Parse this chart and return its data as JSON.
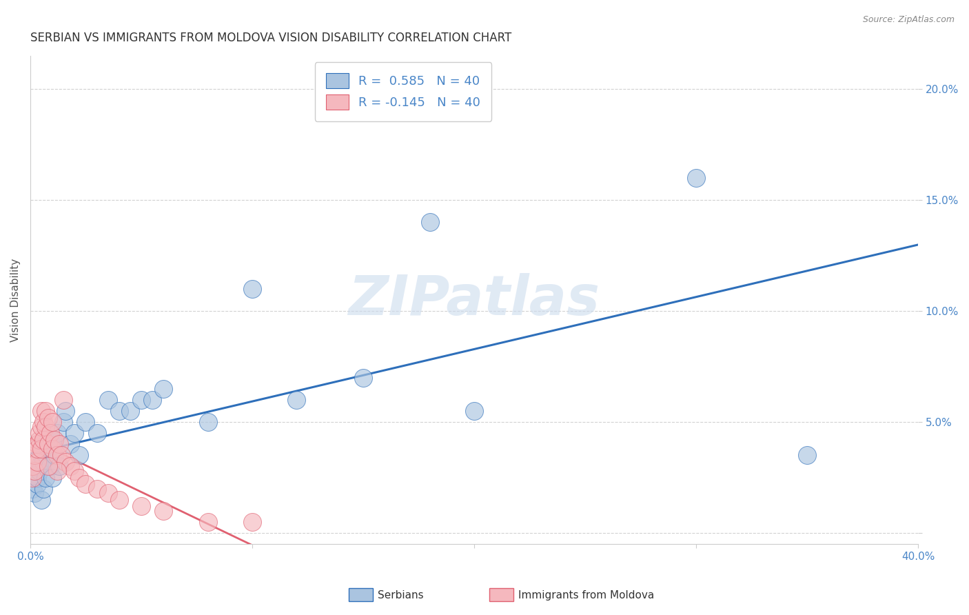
{
  "title": "SERBIAN VS IMMIGRANTS FROM MOLDOVA VISION DISABILITY CORRELATION CHART",
  "source": "Source: ZipAtlas.com",
  "ylabel": "Vision Disability",
  "xlim": [
    0.0,
    0.4
  ],
  "ylim": [
    -0.005,
    0.215
  ],
  "xticks": [
    0.0,
    0.1,
    0.2,
    0.3,
    0.4
  ],
  "xtick_labels": [
    "0.0%",
    "",
    "",
    "",
    "40.0%"
  ],
  "yticks": [
    0.0,
    0.05,
    0.1,
    0.15,
    0.2
  ],
  "ytick_labels": [
    "",
    "5.0%",
    "10.0%",
    "15.0%",
    "20.0%"
  ],
  "R_serbian": 0.585,
  "N_serbian": 40,
  "R_moldova": -0.145,
  "N_moldova": 40,
  "serbian_color": "#aac4e0",
  "moldova_color": "#f5b8be",
  "trend_serbian_color": "#2e6fba",
  "trend_moldova_color": "#e06070",
  "background_color": "#ffffff",
  "watermark": "ZIPatlas",
  "watermark_color": "#ccdcee",
  "legend_label_serbian": "Serbians",
  "legend_label_moldova": "Immigrants from Moldova",
  "serbian_x": [
    0.001,
    0.002,
    0.003,
    0.003,
    0.004,
    0.004,
    0.005,
    0.005,
    0.006,
    0.006,
    0.007,
    0.007,
    0.008,
    0.009,
    0.01,
    0.01,
    0.011,
    0.012,
    0.013,
    0.015,
    0.016,
    0.018,
    0.02,
    0.022,
    0.025,
    0.03,
    0.035,
    0.04,
    0.045,
    0.05,
    0.055,
    0.06,
    0.08,
    0.1,
    0.12,
    0.15,
    0.18,
    0.2,
    0.3,
    0.35
  ],
  "serbian_y": [
    0.02,
    0.018,
    0.022,
    0.025,
    0.03,
    0.028,
    0.015,
    0.035,
    0.02,
    0.032,
    0.025,
    0.04,
    0.038,
    0.03,
    0.042,
    0.025,
    0.035,
    0.045,
    0.03,
    0.05,
    0.055,
    0.04,
    0.045,
    0.035,
    0.05,
    0.045,
    0.06,
    0.055,
    0.055,
    0.06,
    0.06,
    0.065,
    0.05,
    0.11,
    0.06,
    0.07,
    0.14,
    0.055,
    0.16,
    0.035
  ],
  "moldova_x": [
    0.001,
    0.001,
    0.002,
    0.002,
    0.003,
    0.003,
    0.003,
    0.004,
    0.004,
    0.005,
    0.005,
    0.005,
    0.006,
    0.006,
    0.007,
    0.007,
    0.008,
    0.008,
    0.009,
    0.01,
    0.01,
    0.011,
    0.012,
    0.013,
    0.014,
    0.015,
    0.016,
    0.018,
    0.02,
    0.022,
    0.025,
    0.03,
    0.035,
    0.04,
    0.05,
    0.06,
    0.08,
    0.1,
    0.012,
    0.008
  ],
  "moldova_y": [
    0.025,
    0.03,
    0.028,
    0.035,
    0.032,
    0.04,
    0.038,
    0.042,
    0.045,
    0.048,
    0.055,
    0.038,
    0.05,
    0.042,
    0.055,
    0.048,
    0.052,
    0.04,
    0.045,
    0.038,
    0.05,
    0.042,
    0.035,
    0.04,
    0.035,
    0.06,
    0.032,
    0.03,
    0.028,
    0.025,
    0.022,
    0.02,
    0.018,
    0.015,
    0.012,
    0.01,
    0.005,
    0.005,
    0.028,
    0.03
  ]
}
